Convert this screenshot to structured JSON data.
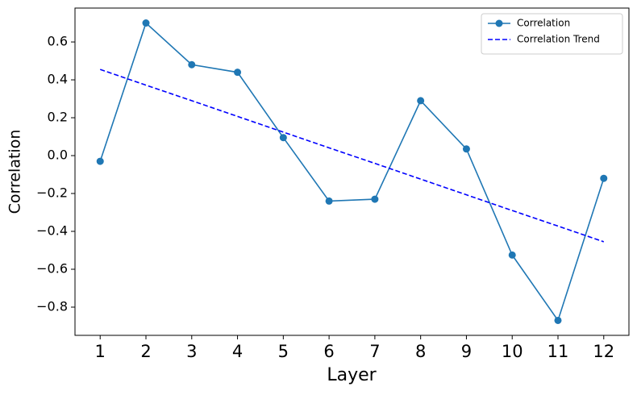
{
  "chart_data": {
    "type": "line",
    "x_label": "Layer",
    "y_label": "Correlation",
    "x": [
      1,
      2,
      3,
      4,
      5,
      6,
      7,
      8,
      9,
      10,
      11,
      12
    ],
    "series": [
      {
        "name": "Correlation",
        "color": "#1f77b4",
        "style": "solid",
        "marker": true,
        "values": [
          -0.03,
          0.7,
          0.48,
          0.44,
          0.095,
          -0.24,
          -0.23,
          0.29,
          0.035,
          -0.525,
          -0.87,
          -0.12
        ]
      },
      {
        "name": "Correlation Trend",
        "color": "#0000ff",
        "style": "dashed",
        "marker": false,
        "values": [
          0.455,
          0.372,
          0.29,
          0.207,
          0.124,
          0.041,
          -0.041,
          -0.124,
          -0.207,
          -0.29,
          -0.372,
          -0.455
        ]
      }
    ],
    "xlim": [
      0.45,
      12.55
    ],
    "ylim": [
      -0.949,
      0.779
    ],
    "xticks": [
      1,
      2,
      3,
      4,
      5,
      6,
      7,
      8,
      9,
      10,
      11,
      12
    ],
    "yticks": [
      {
        "value": -0.8,
        "label": "−0.8"
      },
      {
        "value": -0.6,
        "label": "−0.6"
      },
      {
        "value": -0.4,
        "label": "−0.4"
      },
      {
        "value": -0.2,
        "label": "−0.2"
      },
      {
        "value": 0,
        "label": "0.0"
      },
      0.2,
      0.4,
      0.6
    ],
    "grid": false,
    "legend": "upper right"
  }
}
